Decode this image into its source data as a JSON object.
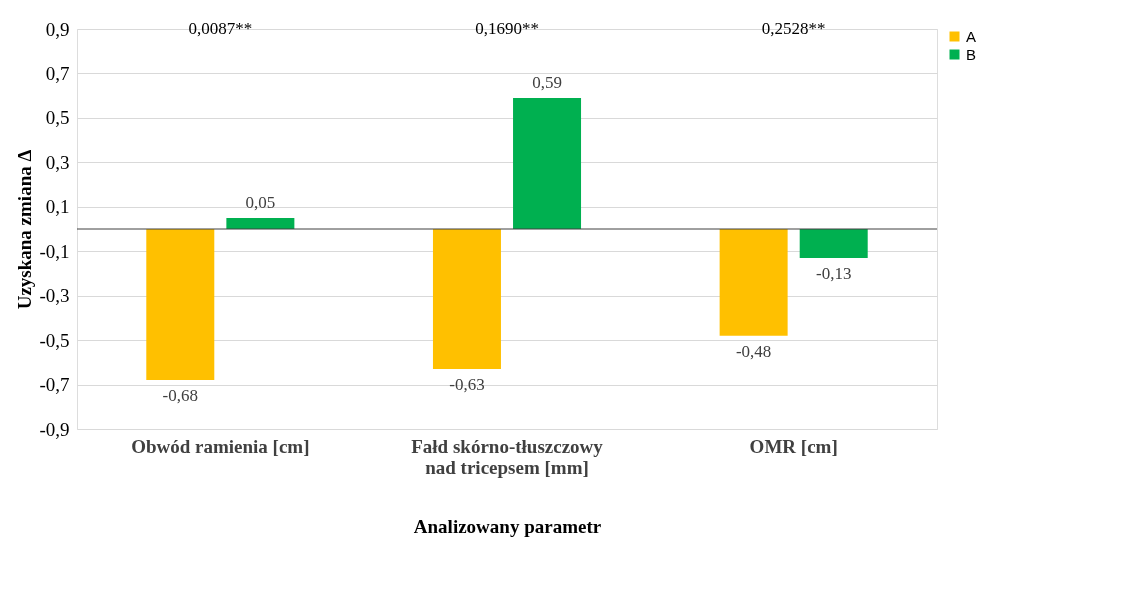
{
  "chart_data": {
    "type": "bar",
    "xlabel": "Analizowany parametr",
    "ylabel": "Uzyskana zmiana Δ",
    "categories": [
      "Obwód ramienia [cm]",
      "Fałd skórno-tłuszczowy nad tricepsem [mm]",
      "OMR [cm]"
    ],
    "series": [
      {
        "name": "A",
        "color": "#ffc000",
        "values": [
          -0.68,
          -0.63,
          -0.48
        ],
        "value_labels": [
          "-0,68",
          "-0,63",
          "-0,48"
        ]
      },
      {
        "name": "B",
        "color": "#00b050",
        "values": [
          0.05,
          0.59,
          -0.13
        ],
        "value_labels": [
          "0,05",
          "0,59",
          "-0,13"
        ]
      }
    ],
    "ylim": [
      -0.9,
      0.9
    ],
    "yticks": [
      {
        "value": -0.9,
        "label": "-0,9"
      },
      {
        "value": -0.7,
        "label": "-0,7"
      },
      {
        "value": -0.5,
        "label": "-0,5"
      },
      {
        "value": -0.3,
        "label": "-0,3"
      },
      {
        "value": -0.1,
        "label": "-0,1"
      },
      {
        "value": 0.1,
        "label": "0,1"
      },
      {
        "value": 0.3,
        "label": "0,3"
      },
      {
        "value": 0.5,
        "label": "0,5"
      },
      {
        "value": 0.7,
        "label": "0,7"
      },
      {
        "value": 0.9,
        "label": "0,9"
      }
    ],
    "grid": "y",
    "legend": "right",
    "annotations": [
      "0,0087**",
      "0,1690**",
      "0,2528**"
    ]
  }
}
